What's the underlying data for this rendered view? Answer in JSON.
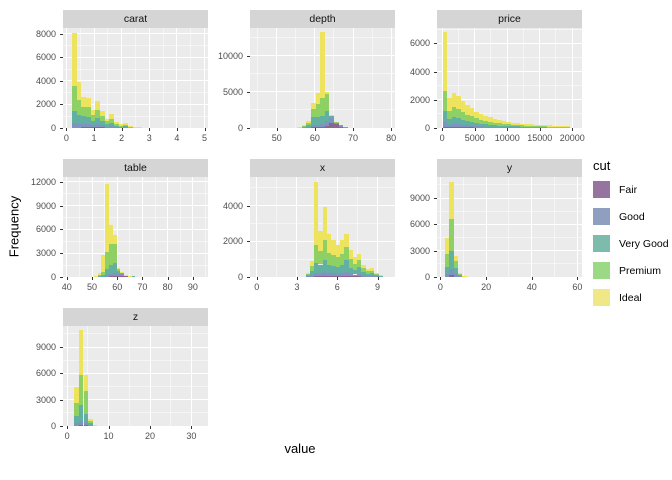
{
  "figure": {
    "ylabel": "Frequency",
    "xlabel": "value",
    "background": "#FFFFFF",
    "panel_bg": "#EBEBEB",
    "strip_bg": "#D5D5D5",
    "grid_color": "#FFFFFF"
  },
  "legend": {
    "title": "cut",
    "items": [
      {
        "label": "Fair",
        "color": "#97739F"
      },
      {
        "label": "Good",
        "color": "#8F9FC0"
      },
      {
        "label": "Very Good",
        "color": "#7DBCAC"
      },
      {
        "label": "Premium",
        "color": "#9CD984"
      },
      {
        "label": "Ideal",
        "color": "#F0E885"
      }
    ]
  },
  "chart_data": {
    "type": "bar",
    "subtype": "faceted-stacked-histogram",
    "facet_titles": [
      "carat",
      "depth",
      "price",
      "table",
      "x",
      "y",
      "z"
    ],
    "stack_by": "cut",
    "stack_levels_bottom_to_top": [
      "Fair",
      "Good",
      "Very Good",
      "Premium",
      "Ideal"
    ],
    "bar_colors": {
      "Fair": "#8A6691",
      "Good": "#7E93BF",
      "Very Good": "#61B0A1",
      "Premium": "#8ED063",
      "Ideal": "#EDE35C"
    },
    "bar_value_order": [
      "x_center",
      "Fair",
      "Good",
      "Very Good",
      "Premium",
      "Ideal"
    ],
    "panels": [
      {
        "title": "carat",
        "xlim": [
          -0.125,
          5.125
        ],
        "ylim": [
          0,
          8500
        ],
        "xticks": [
          0,
          1,
          2,
          3,
          4,
          5
        ],
        "yticks": [
          0,
          2000,
          4000,
          6000,
          8000
        ],
        "binwidth": 0.17,
        "bars": [
          [
            0.28,
            40,
            380,
            1000,
            2180,
            4500
          ],
          [
            0.45,
            40,
            300,
            800,
            1260,
            1500
          ],
          [
            0.62,
            60,
            280,
            660,
            800,
            800
          ],
          [
            0.79,
            70,
            280,
            620,
            780,
            800
          ],
          [
            0.96,
            50,
            180,
            380,
            460,
            430
          ],
          [
            1.13,
            70,
            230,
            540,
            720,
            740
          ],
          [
            1.3,
            60,
            170,
            350,
            460,
            440
          ],
          [
            1.47,
            30,
            90,
            190,
            250,
            240
          ],
          [
            1.64,
            40,
            120,
            270,
            370,
            350
          ],
          [
            1.81,
            20,
            50,
            110,
            150,
            150
          ],
          [
            1.98,
            15,
            35,
            70,
            90,
            90
          ],
          [
            2.15,
            20,
            45,
            95,
            120,
            120
          ],
          [
            2.32,
            8,
            17,
            35,
            45,
            45
          ],
          [
            2.49,
            5,
            10,
            20,
            28,
            27
          ],
          [
            2.66,
            4,
            7,
            14,
            18,
            17
          ],
          [
            3.0,
            2,
            3,
            6,
            7,
            7
          ],
          [
            3.4,
            1,
            1,
            3,
            3,
            2
          ]
        ]
      },
      {
        "title": "depth",
        "xlim": [
          43,
          81
        ],
        "ylim": [
          0,
          13800
        ],
        "xticks": [
          50,
          60,
          70,
          80
        ],
        "yticks": [
          0,
          5000,
          10000
        ],
        "binwidth": 1.2,
        "bars": [
          [
            56.0,
            10,
            30,
            40,
            20,
            20
          ],
          [
            57.2,
            20,
            60,
            120,
            80,
            70
          ],
          [
            58.4,
            40,
            120,
            300,
            240,
            200
          ],
          [
            59.6,
            80,
            300,
            1100,
            1100,
            820
          ],
          [
            60.8,
            100,
            350,
            1100,
            1700,
            1550
          ],
          [
            62.0,
            100,
            400,
            1200,
            2500,
            9000
          ],
          [
            63.2,
            300,
            700,
            1300,
            2400,
            300
          ],
          [
            64.4,
            700,
            700,
            300,
            80,
            20
          ],
          [
            65.6,
            520,
            230,
            40,
            10,
            0
          ],
          [
            66.8,
            300,
            40,
            10,
            0,
            0
          ],
          [
            68.0,
            100,
            15,
            5,
            0,
            0
          ],
          [
            69.2,
            35,
            5,
            0,
            0,
            0
          ]
        ]
      },
      {
        "title": "price",
        "xlim": [
          -800,
          21500
        ],
        "ylim": [
          0,
          7100
        ],
        "xticks": [
          0,
          5000,
          10000,
          15000,
          20000
        ],
        "yticks": [
          0,
          2000,
          4000,
          6000
        ],
        "binwidth": 700,
        "bars": [
          [
            400,
            70,
            330,
            800,
            1400,
            4200
          ],
          [
            1100,
            60,
            170,
            420,
            590,
            860
          ],
          [
            1800,
            75,
            200,
            500,
            700,
            1025
          ],
          [
            2500,
            70,
            185,
            460,
            645,
            940
          ],
          [
            3200,
            55,
            150,
            380,
            530,
            785
          ],
          [
            3900,
            50,
            130,
            320,
            450,
            650
          ],
          [
            4600,
            40,
            110,
            280,
            390,
            580
          ],
          [
            5300,
            35,
            90,
            230,
            320,
            475
          ],
          [
            6000,
            30,
            80,
            200,
            280,
            410
          ],
          [
            6700,
            25,
            70,
            170,
            240,
            345
          ],
          [
            7400,
            22,
            60,
            150,
            210,
            308
          ],
          [
            8100,
            20,
            50,
            130,
            180,
            270
          ],
          [
            8800,
            17,
            45,
            112,
            157,
            229
          ],
          [
            9500,
            15,
            40,
            100,
            140,
            205
          ],
          [
            10200,
            13,
            35,
            88,
            123,
            181
          ],
          [
            10900,
            12,
            30,
            78,
            109,
            161
          ],
          [
            11600,
            10,
            28,
            70,
            98,
            144
          ],
          [
            12300,
            9,
            25,
            62,
            87,
            127
          ],
          [
            13000,
            8,
            22,
            56,
            78,
            116
          ],
          [
            13700,
            7,
            20,
            50,
            70,
            103
          ],
          [
            14400,
            7,
            18,
            46,
            64,
            95
          ],
          [
            15100,
            6,
            17,
            42,
            59,
            86
          ],
          [
            15800,
            6,
            15,
            38,
            53,
            78
          ],
          [
            16500,
            5,
            14,
            36,
            50,
            75
          ],
          [
            17200,
            5,
            14,
            34,
            48,
            69
          ],
          [
            17900,
            5,
            13,
            32,
            45,
            65
          ],
          [
            18600,
            4,
            12,
            30,
            42,
            62
          ],
          [
            19300,
            4,
            11,
            28,
            39,
            58
          ]
        ]
      },
      {
        "title": "table",
        "xlim": [
          38.5,
          96
        ],
        "ylim": [
          0,
          12600
        ],
        "xticks": [
          40,
          50,
          60,
          70,
          80,
          90
        ],
        "yticks": [
          0,
          3000,
          6000,
          9000,
          12000
        ],
        "binwidth": 1.5,
        "bars": [
          [
            51.5,
            5,
            15,
            40,
            40,
            50
          ],
          [
            53.0,
            15,
            40,
            120,
            130,
            195
          ],
          [
            54.5,
            10,
            40,
            150,
            400,
            2200
          ],
          [
            56.0,
            50,
            150,
            800,
            2200,
            8500
          ],
          [
            57.5,
            100,
            300,
            1100,
            2600,
            2500
          ],
          [
            59.0,
            100,
            400,
            1300,
            2300,
            1200
          ],
          [
            60.5,
            100,
            300,
            400,
            250,
            50
          ],
          [
            62.0,
            120,
            250,
            180,
            40,
            10
          ],
          [
            63.5,
            130,
            120,
            40,
            8,
            2
          ],
          [
            65.0,
            90,
            45,
            12,
            2,
            1
          ],
          [
            66.5,
            55,
            20,
            5,
            0,
            0
          ],
          [
            68.0,
            30,
            8,
            2,
            0,
            0
          ]
        ]
      },
      {
        "title": "x",
        "xlim": [
          -0.5,
          10.3
        ],
        "ylim": [
          0,
          5600
        ],
        "xticks": [
          0,
          3,
          6,
          9
        ],
        "yticks": [
          0,
          2000,
          4000
        ],
        "binwidth": 0.32,
        "bars": [
          [
            3.8,
            5,
            25,
            70,
            70,
            80
          ],
          [
            4.12,
            20,
            80,
            250,
            250,
            300
          ],
          [
            4.44,
            50,
            150,
            600,
            1000,
            3500
          ],
          [
            4.76,
            50,
            150,
            500,
            750,
            1150
          ],
          [
            5.08,
            60,
            200,
            700,
            1100,
            1840
          ],
          [
            5.4,
            50,
            150,
            450,
            700,
            1050
          ],
          [
            5.72,
            50,
            150,
            420,
            620,
            860
          ],
          [
            6.04,
            50,
            130,
            380,
            540,
            700
          ],
          [
            6.36,
            60,
            160,
            440,
            630,
            810
          ],
          [
            6.68,
            70,
            200,
            700,
            720,
            710
          ],
          [
            7.0,
            50,
            130,
            350,
            460,
            510
          ],
          [
            7.32,
            40,
            100,
            260,
            340,
            360
          ],
          [
            7.64,
            50,
            130,
            400,
            380,
            340
          ],
          [
            7.96,
            25,
            70,
            180,
            220,
            205
          ],
          [
            8.28,
            18,
            45,
            115,
            140,
            132
          ],
          [
            8.6,
            20,
            50,
            130,
            155,
            145
          ],
          [
            8.92,
            10,
            25,
            65,
            78,
            72
          ],
          [
            9.24,
            5,
            12,
            30,
            38,
            35
          ]
        ]
      },
      {
        "title": "y",
        "xlim": [
          -1.5,
          62
        ],
        "ylim": [
          0,
          11400
        ],
        "xticks": [
          0,
          20,
          40,
          60
        ],
        "yticks": [
          0,
          3000,
          6000,
          9000
        ],
        "binwidth": 1.9,
        "bars": [
          [
            3.0,
            50,
            250,
            800,
            1500,
            1800
          ],
          [
            4.9,
            200,
            700,
            2100,
            3600,
            4200
          ],
          [
            6.8,
            50,
            250,
            700,
            800,
            600
          ],
          [
            8.7,
            15,
            55,
            150,
            160,
            120
          ],
          [
            10.6,
            3,
            10,
            30,
            32,
            25
          ]
        ]
      },
      {
        "title": "z",
        "xlim": [
          -1,
          34
        ],
        "ylim": [
          0,
          11400
        ],
        "xticks": [
          0,
          10,
          20,
          30
        ],
        "yticks": [
          0,
          3000,
          6000,
          9000
        ],
        "binwidth": 1.1,
        "bars": [
          [
            2.3,
            50,
            250,
            800,
            1500,
            1800
          ],
          [
            3.4,
            100,
            500,
            1800,
            3400,
            5200
          ],
          [
            4.5,
            100,
            300,
            1000,
            2600,
            1800
          ],
          [
            5.6,
            25,
            75,
            200,
            280,
            220
          ],
          [
            6.7,
            5,
            15,
            40,
            50,
            40
          ]
        ]
      }
    ]
  }
}
